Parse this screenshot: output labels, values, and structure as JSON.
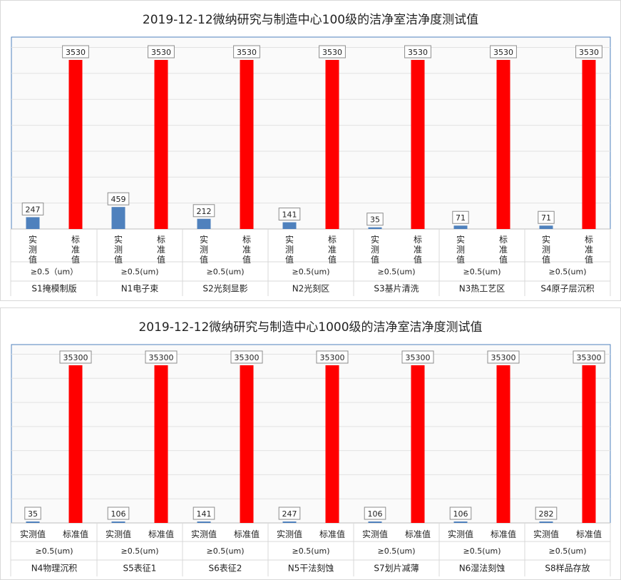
{
  "chart_data": [
    {
      "type": "bar",
      "title": "2019-12-12微纳研究与制造中心100级的洁净室洁净度测试值",
      "vertical_labels": true,
      "series_labels": [
        "实测值",
        "标准值"
      ],
      "series_colors": [
        "#4f81bd",
        "#ff0000"
      ],
      "groups": [
        {
          "size": "≥0.5（um）",
          "name": "S1掩模制版",
          "measured": 247,
          "standard": 3530
        },
        {
          "size": "≥0.5(um)",
          "name": "N1电子束",
          "measured": 459,
          "standard": 3530
        },
        {
          "size": "≥0.5(um)",
          "name": "S2光刻显影",
          "measured": 212,
          "standard": 3530
        },
        {
          "size": "≥0.5(um)",
          "name": "N2光刻区",
          "measured": 141,
          "standard": 3530
        },
        {
          "size": "≥0.5(um)",
          "name": "S3基片清洗",
          "measured": 35,
          "standard": 3530
        },
        {
          "size": "≥0.5(um)",
          "name": "N3热工艺区",
          "measured": 71,
          "standard": 3530
        },
        {
          "size": "≥0.5(um)",
          "name": "S4原子层沉积",
          "measured": 71,
          "standard": 3530
        }
      ],
      "ylim": [
        0,
        3530
      ],
      "grid": true
    },
    {
      "type": "bar",
      "title": "2019-12-12微纳研究与制造中心1000级的洁净室洁净度测试值",
      "vertical_labels": false,
      "series_labels": [
        "实测值",
        "标准值"
      ],
      "series_colors": [
        "#4f81bd",
        "#ff0000"
      ],
      "groups": [
        {
          "size": "≥0.5(um)",
          "name": "N4物理沉积",
          "measured": 35,
          "standard": 35300
        },
        {
          "size": "≥0.5(um)",
          "name": "S5表征1",
          "measured": 106,
          "standard": 35300
        },
        {
          "size": "≥0.5(um)",
          "name": "S6表征2",
          "measured": 141,
          "standard": 35300
        },
        {
          "size": "≥0.5(um)",
          "name": "N5干法刻蚀",
          "measured": 247,
          "standard": 35300
        },
        {
          "size": "≥0.5(um)",
          "name": "S7划片减薄",
          "measured": 106,
          "standard": 35300
        },
        {
          "size": "≥0.5(um)",
          "name": "N6湿法刻蚀",
          "measured": 106,
          "standard": 35300
        },
        {
          "size": "≥0.5(um)",
          "name": "S8样品存放",
          "measured": 282,
          "standard": 35300
        }
      ],
      "ylim": [
        0,
        35300
      ],
      "grid": true
    }
  ]
}
